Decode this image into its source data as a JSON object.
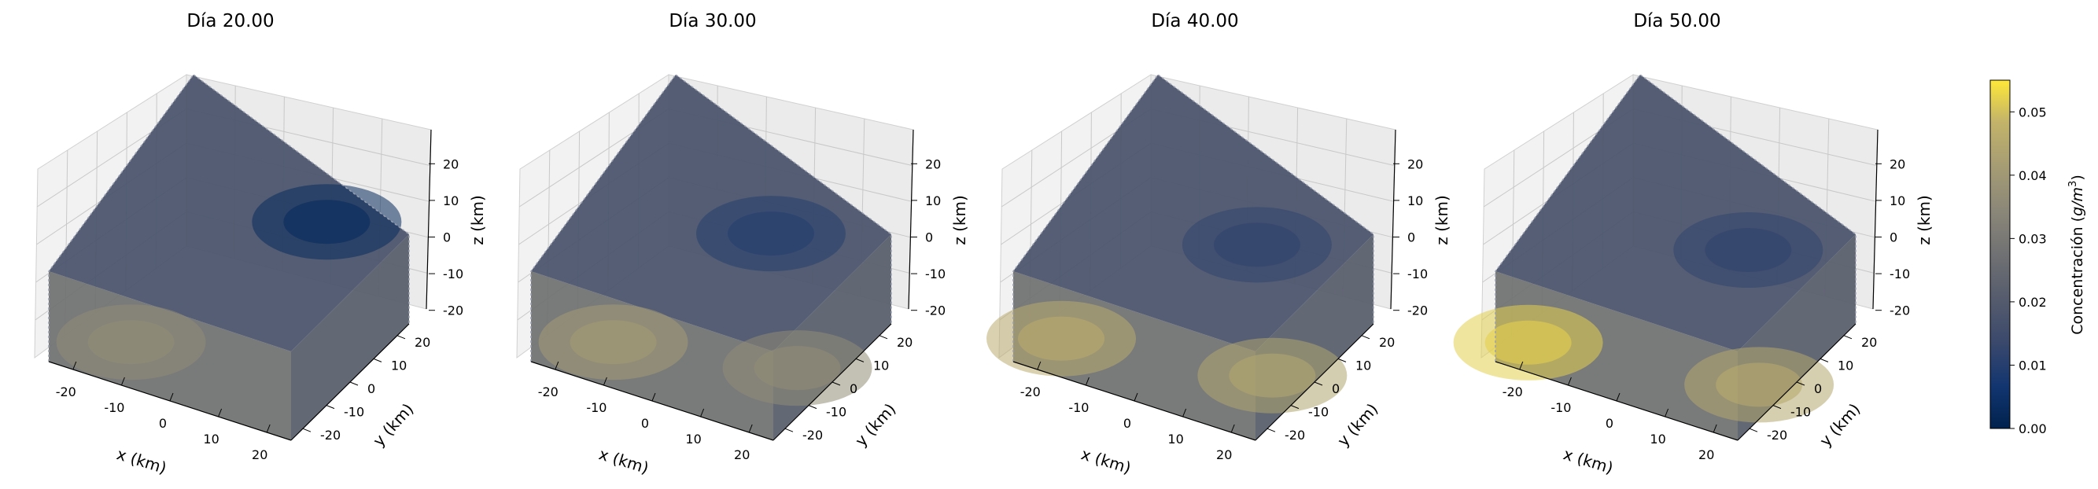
{
  "chart_data": [
    {
      "type": "3d-voxel-scatter",
      "title": "Día 20.00",
      "xlabel": "x (km)",
      "ylabel": "y (km)",
      "zlabel": "z (km)",
      "xlim": [
        -25,
        25
      ],
      "ylim": [
        -25,
        25
      ],
      "zlim": [
        -25,
        25
      ],
      "xticks": [
        -20,
        -10,
        0,
        10,
        20
      ],
      "yticks": [
        -20,
        -10,
        0,
        10,
        20
      ],
      "zticks": [
        -20,
        -10,
        0,
        10,
        20
      ],
      "grid": true,
      "colorscale": "cividis",
      "value_range": [
        0.0,
        0.055
      ],
      "plume": [
        {
          "x": -12,
          "y": -18,
          "value": 0.036
        },
        {
          "x": 10,
          "y": 18,
          "value": 0.003
        }
      ]
    },
    {
      "type": "3d-voxel-scatter",
      "title": "Día 30.00",
      "xlabel": "x (km)",
      "ylabel": "y (km)",
      "zlabel": "z (km)",
      "xlim": [
        -25,
        25
      ],
      "ylim": [
        -25,
        25
      ],
      "zlim": [
        -25,
        25
      ],
      "xticks": [
        -20,
        -10,
        0,
        10,
        20
      ],
      "yticks": [
        -20,
        -10,
        0,
        10,
        20
      ],
      "zticks": [
        -20,
        -10,
        0,
        10,
        20
      ],
      "grid": true,
      "colorscale": "cividis",
      "value_range": [
        0.0,
        0.055
      ],
      "plume": [
        {
          "x": -12,
          "y": -18,
          "value": 0.041
        },
        {
          "x": 20,
          "y": -5,
          "value": 0.036
        },
        {
          "x": 6,
          "y": 10,
          "value": 0.01
        }
      ]
    },
    {
      "type": "3d-voxel-scatter",
      "title": "Día 40.00",
      "xlabel": "x (km)",
      "ylabel": "y (km)",
      "zlabel": "z (km)",
      "xlim": [
        -25,
        25
      ],
      "ylim": [
        -25,
        25
      ],
      "zlim": [
        -25,
        25
      ],
      "xticks": [
        -20,
        -10,
        0,
        10,
        20
      ],
      "yticks": [
        -20,
        -10,
        0,
        10,
        20
      ],
      "zticks": [
        -20,
        -10,
        0,
        10,
        20
      ],
      "grid": true,
      "colorscale": "cividis",
      "value_range": [
        0.0,
        0.055
      ],
      "plume": [
        {
          "x": -18,
          "y": -20,
          "value": 0.046
        },
        {
          "x": 20,
          "y": -8,
          "value": 0.044
        },
        {
          "x": 8,
          "y": 8,
          "value": 0.012
        }
      ]
    },
    {
      "type": "3d-voxel-scatter",
      "title": "Día 50.00",
      "xlabel": "x (km)",
      "ylabel": "y (km)",
      "zlabel": "z (km)",
      "xlim": [
        -25,
        25
      ],
      "ylim": [
        -25,
        25
      ],
      "zlim": [
        -25,
        25
      ],
      "xticks": [
        -20,
        -10,
        0,
        10,
        20
      ],
      "yticks": [
        -20,
        -10,
        0,
        10,
        20
      ],
      "zticks": [
        -20,
        -10,
        0,
        10,
        20
      ],
      "grid": true,
      "colorscale": "cividis",
      "value_range": [
        0.0,
        0.055
      ],
      "plume": [
        {
          "x": -20,
          "y": -22,
          "value": 0.052
        },
        {
          "x": 22,
          "y": -10,
          "value": 0.045
        },
        {
          "x": 10,
          "y": 8,
          "value": 0.012
        }
      ]
    }
  ],
  "colorbar": {
    "label": "Concentración (g/m³)",
    "label_main": "Concentración (",
    "label_unit_base": "g/m",
    "label_unit_exp": "3",
    "label_close": ")",
    "ticks": [
      "0.00",
      "0.01",
      "0.02",
      "0.03",
      "0.04",
      "0.05"
    ],
    "range": [
      0.0,
      0.055
    ],
    "colorscale": "cividis"
  }
}
